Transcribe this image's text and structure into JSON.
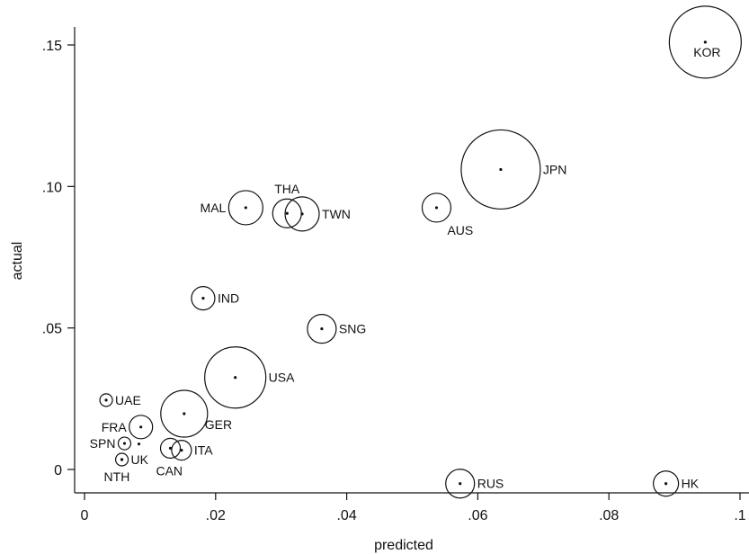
{
  "chart_data": {
    "type": "scatter",
    "title": "",
    "xlabel": "predicted",
    "ylabel": "actual",
    "xlim": [
      -0.002,
      0.1
    ],
    "ylim": [
      -0.008,
      0.162
    ],
    "x_ticks": [
      0,
      0.02,
      0.04,
      0.06,
      0.08,
      0.1
    ],
    "x_tick_labels": [
      "0",
      ".02",
      ".04",
      ".06",
      ".08",
      ".1"
    ],
    "y_ticks": [
      0,
      0.05,
      0.1,
      0.15
    ],
    "y_tick_labels": [
      "0",
      ".05",
      ".10",
      ".15"
    ],
    "grid": false,
    "marker_size_encodes": "relative weight (bubble area)",
    "points": [
      {
        "label": "KOR",
        "x": 0.0947,
        "y": 0.151,
        "r": 40,
        "label_pos": "below"
      },
      {
        "label": "JPN",
        "x": 0.0635,
        "y": 0.106,
        "r": 44,
        "label_pos": "right"
      },
      {
        "label": "AUS",
        "x": 0.0537,
        "y": 0.0925,
        "r": 16,
        "label_pos": "below-right"
      },
      {
        "label": "TWN",
        "x": 0.0332,
        "y": 0.0903,
        "r": 19,
        "label_pos": "right"
      },
      {
        "label": "THA",
        "x": 0.0309,
        "y": 0.0905,
        "r": 16,
        "label_pos": "above"
      },
      {
        "label": "MAL",
        "x": 0.0246,
        "y": 0.0925,
        "r": 19,
        "label_pos": "left"
      },
      {
        "label": "IND",
        "x": 0.0181,
        "y": 0.0605,
        "r": 13,
        "label_pos": "right"
      },
      {
        "label": "SNG",
        "x": 0.0362,
        "y": 0.0497,
        "r": 16,
        "label_pos": "right"
      },
      {
        "label": "USA",
        "x": 0.023,
        "y": 0.0325,
        "r": 34,
        "label_pos": "right"
      },
      {
        "label": "GER",
        "x": 0.0152,
        "y": 0.0197,
        "r": 26,
        "label_pos": "below-right"
      },
      {
        "label": "UAE",
        "x": 0.0033,
        "y": 0.0245,
        "r": 7,
        "label_pos": "right"
      },
      {
        "label": "FRA",
        "x": 0.0086,
        "y": 0.015,
        "r": 13,
        "label_pos": "left"
      },
      {
        "label": "SPN",
        "x": 0.0061,
        "y": 0.0092,
        "r": 7,
        "label_pos": "left"
      },
      {
        "label": "",
        "x": 0.0083,
        "y": 0.009,
        "r": 0,
        "label_pos": "none"
      },
      {
        "label": "UK",
        "x": 0.0057,
        "y": 0.0035,
        "r": 7,
        "label_pos": "right"
      },
      {
        "label": "NTH",
        "x": 0.0057,
        "y": 0.0035,
        "r": 0,
        "label_pos": "below-left"
      },
      {
        "label": "CAN",
        "x": 0.0131,
        "y": 0.0075,
        "r": 11,
        "label_pos": "below"
      },
      {
        "label": "ITA",
        "x": 0.0148,
        "y": 0.0068,
        "r": 11,
        "label_pos": "right"
      },
      {
        "label": "RUS",
        "x": 0.0573,
        "y": -0.005,
        "r": 16,
        "label_pos": "right"
      },
      {
        "label": "HK",
        "x": 0.0887,
        "y": -0.005,
        "r": 14,
        "label_pos": "right"
      }
    ]
  }
}
